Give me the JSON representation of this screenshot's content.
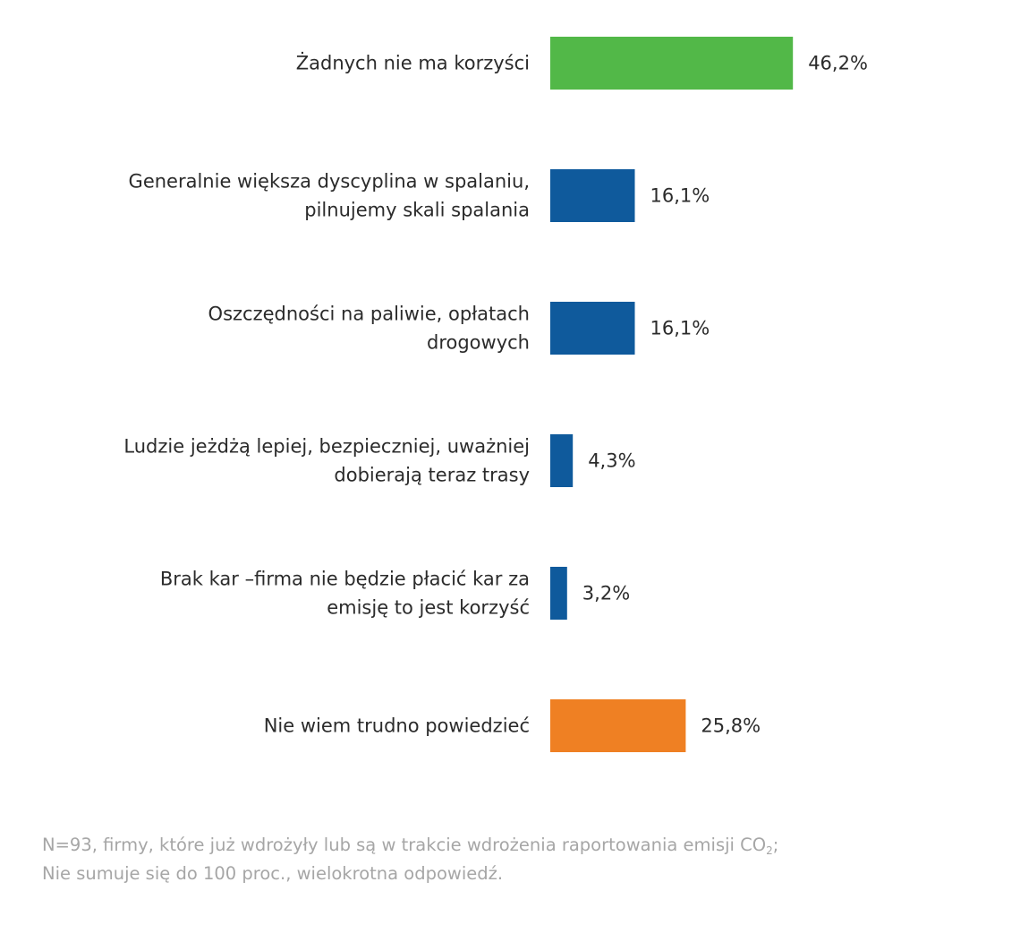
{
  "chart_data": {
    "type": "bar",
    "orientation": "horizontal",
    "categories": [
      [
        "Żadnych nie ma korzyści"
      ],
      [
        "Generalnie większa dyscyplina w spalaniu,",
        "pilnujemy skali spalania"
      ],
      [
        "Oszczędności na paliwie, opłatach",
        "drogowych"
      ],
      [
        "Ludzie jeżdżą lepiej, bezpieczniej, uważniej",
        "dobierają teraz trasy"
      ],
      [
        "Brak kar –firma nie będzie płacić kar za",
        "emisję to jest korzyść"
      ],
      [
        "Nie wiem trudno powiedzieć"
      ]
    ],
    "values": [
      46.2,
      16.1,
      16.1,
      4.3,
      3.2,
      25.8
    ],
    "value_labels": [
      "46,2%",
      "16,1%",
      "16,1%",
      "4,3%",
      "3,2%",
      "25,8%"
    ],
    "colors": [
      "#52b848",
      "#0f5a9c",
      "#0f5a9c",
      "#0f5a9c",
      "#0f5a9c",
      "#ef8023"
    ],
    "grid": false,
    "legend": "none",
    "axes_visible": false
  },
  "footnote": {
    "line1_main": "N=93, firmy, które już wdrożyły lub są w trakcie wdrożenia raportowania emisji CO",
    "line1_sub": "2",
    "line1_end": ";",
    "line2": "Nie sumuje się do 100 proc., wielokrotna odpowiedź."
  }
}
